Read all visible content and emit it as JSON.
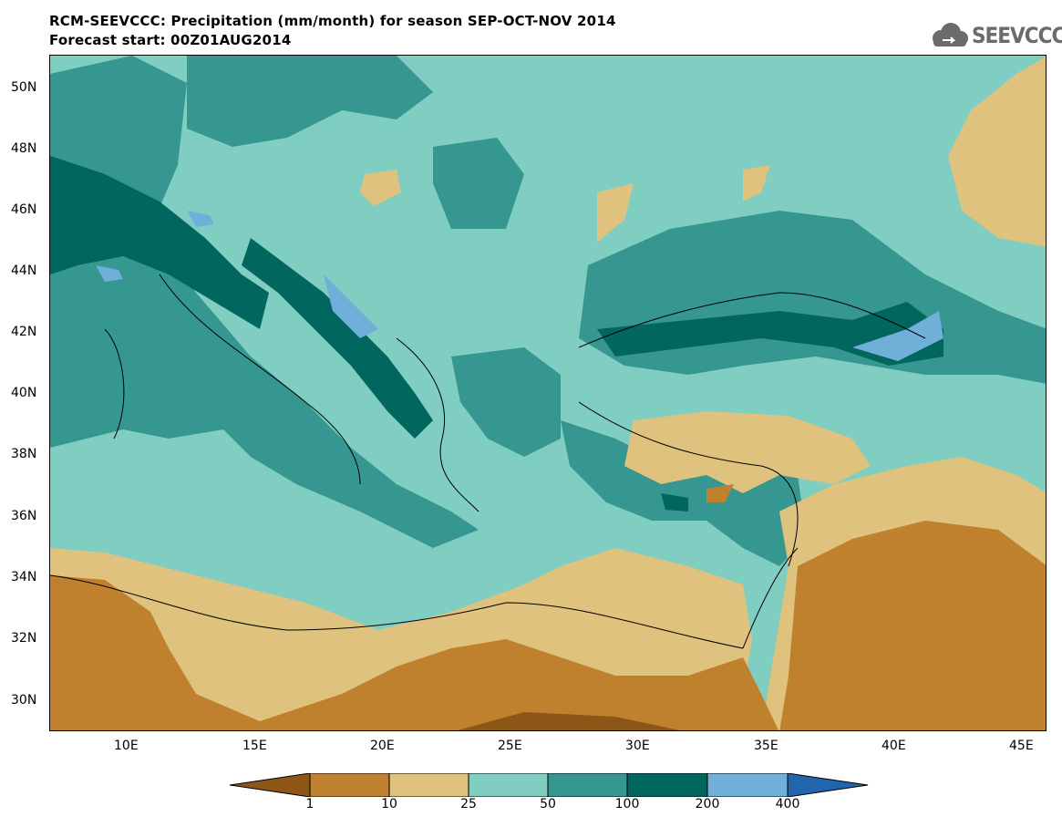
{
  "header": {
    "title": "RCM-SEEVCCC: Precipitation (mm/month) for season SEP-OCT-NOV 2014",
    "subtitle": "Forecast start: 00Z01AUG2014",
    "logo_text": "SEEVCCC"
  },
  "map": {
    "lon_range": [
      7,
      46
    ],
    "lat_range": [
      29,
      51
    ],
    "lat_labels": [
      "50N",
      "48N",
      "46N",
      "44N",
      "42N",
      "40N",
      "38N",
      "36N",
      "34N",
      "32N",
      "30N"
    ],
    "lon_labels": [
      "10E",
      "15E",
      "20E",
      "25E",
      "30E",
      "35E",
      "40E",
      "45E"
    ]
  },
  "legend": {
    "thresholds": [
      "1",
      "10",
      "25",
      "50",
      "100",
      "200",
      "400"
    ],
    "colors": [
      "#8c5616",
      "#bf812d",
      "#dfc27d",
      "#80cdc1",
      "#35978f",
      "#01665e",
      "#6fafd8",
      "#2166ac"
    ]
  }
}
